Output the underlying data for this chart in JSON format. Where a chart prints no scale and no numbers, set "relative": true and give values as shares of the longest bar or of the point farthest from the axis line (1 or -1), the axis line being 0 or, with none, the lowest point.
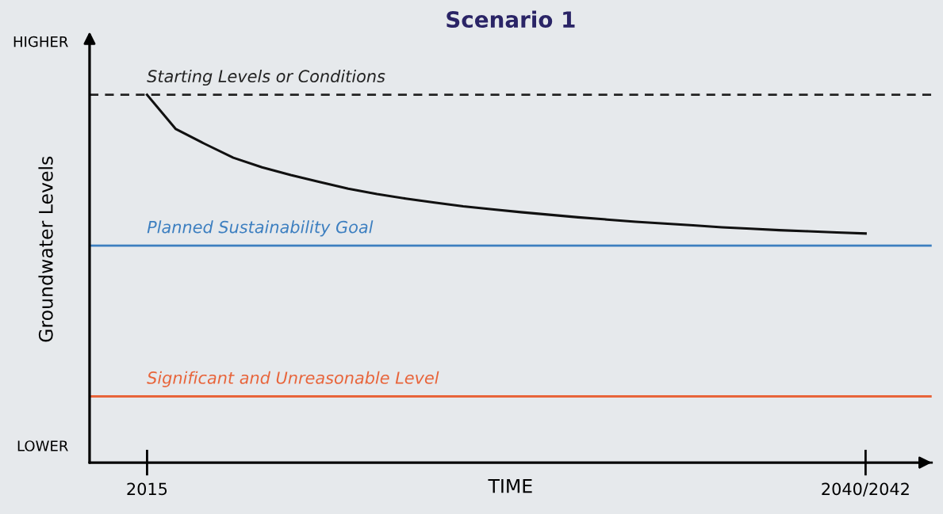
{
  "chart_data": {
    "type": "line",
    "relative": true,
    "title": "Scenario 1",
    "xlabel": "TIME",
    "ylabel": "Groundwater Levels",
    "categories": [
      "2015",
      null,
      null,
      null,
      null,
      null,
      null,
      null,
      null,
      null,
      null,
      null,
      null,
      null,
      null,
      null,
      null,
      null,
      null,
      null,
      null,
      null,
      null,
      null,
      null,
      "2040/2042"
    ],
    "series": [
      {
        "color": "#111111",
        "values": [
          1.0,
          0.907,
          0.867,
          0.829,
          0.803,
          0.782,
          0.763,
          0.745,
          0.73,
          0.718,
          0.707,
          0.697,
          0.689,
          0.681,
          0.674,
          0.667,
          0.661,
          0.655,
          0.65,
          0.645,
          0.64,
          0.636,
          0.632,
          0.629,
          0.626,
          0.623
        ]
      }
    ],
    "ref_lines": [
      {
        "axis": "y",
        "value": 1.0,
        "label": "Starting Levels or Conditions",
        "color": "#222222",
        "line_style": "dashed"
      },
      {
        "axis": "y",
        "value": 0.59,
        "label": "Planned Sustainability Goal",
        "color": "#3d7fc0",
        "line_style": "solid"
      },
      {
        "axis": "y",
        "value": 0.18,
        "label": "Significant and Unreasonable Level",
        "color": "#e8643a",
        "line_style": "solid"
      }
    ],
    "annotations": [
      "HIGHER",
      "LOWER"
    ],
    "marker": "none",
    "line_style": "solid"
  }
}
